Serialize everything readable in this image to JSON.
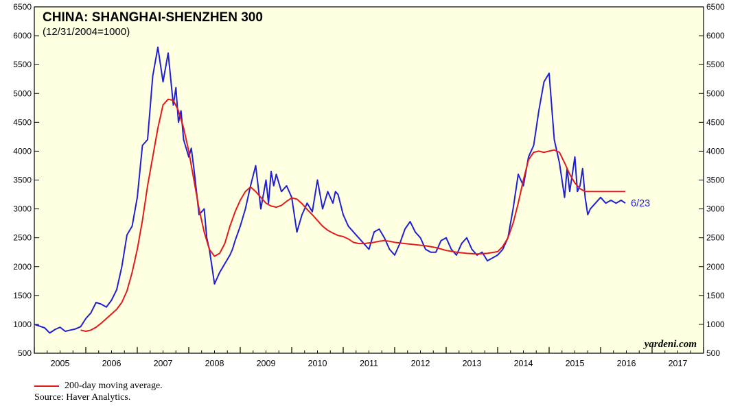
{
  "chart_data": {
    "type": "line",
    "title": "CHINA: SHANGHAI-SHENZHEN 300",
    "subtitle": "(12/31/2004=1000)",
    "ylim": [
      500,
      6500
    ],
    "yticks": [
      500,
      1000,
      1500,
      2000,
      2500,
      3000,
      3500,
      4000,
      4500,
      5000,
      5500,
      6000,
      6500
    ],
    "xlim": [
      2005.0,
      2018.0
    ],
    "xcategories": [
      "2005",
      "2006",
      "2007",
      "2008",
      "2009",
      "2010",
      "2011",
      "2012",
      "2013",
      "2014",
      "2015",
      "2016",
      "2017"
    ],
    "grid": false,
    "end_label": "6/23",
    "brand": "yardeni.com",
    "series": [
      {
        "name": "Shanghai-Shenzhen 300",
        "color": "#1f1fd6",
        "x": [
          2005.0,
          2005.1,
          2005.2,
          2005.3,
          2005.4,
          2005.5,
          2005.6,
          2005.7,
          2005.8,
          2005.9,
          2006.0,
          2006.1,
          2006.2,
          2006.3,
          2006.4,
          2006.5,
          2006.6,
          2006.7,
          2006.8,
          2006.9,
          2007.0,
          2007.1,
          2007.2,
          2007.3,
          2007.4,
          2007.5,
          2007.6,
          2007.7,
          2007.75,
          2007.8,
          2007.85,
          2007.9,
          2008.0,
          2008.05,
          2008.1,
          2008.2,
          2008.3,
          2008.35,
          2008.4,
          2008.45,
          2008.5,
          2008.6,
          2008.7,
          2008.8,
          2008.85,
          2008.9,
          2009.0,
          2009.1,
          2009.2,
          2009.3,
          2009.4,
          2009.5,
          2009.55,
          2009.6,
          2009.65,
          2009.7,
          2009.8,
          2009.9,
          2010.0,
          2010.1,
          2010.2,
          2010.3,
          2010.4,
          2010.5,
          2010.6,
          2010.7,
          2010.8,
          2010.85,
          2010.9,
          2011.0,
          2011.1,
          2011.2,
          2011.3,
          2011.4,
          2011.5,
          2011.6,
          2011.7,
          2011.8,
          2011.9,
          2012.0,
          2012.1,
          2012.2,
          2012.3,
          2012.4,
          2012.5,
          2012.6,
          2012.7,
          2012.8,
          2012.9,
          2013.0,
          2013.1,
          2013.2,
          2013.3,
          2013.4,
          2013.5,
          2013.6,
          2013.7,
          2013.8,
          2013.9,
          2014.0,
          2014.1,
          2014.2,
          2014.3,
          2014.4,
          2014.5,
          2014.6,
          2014.7,
          2014.8,
          2014.9,
          2015.0,
          2015.1,
          2015.2,
          2015.3,
          2015.35,
          2015.4,
          2015.45,
          2015.5,
          2015.55,
          2015.6,
          2015.65,
          2015.7,
          2015.75,
          2015.8,
          2015.9,
          2016.0,
          2016.05,
          2016.1,
          2016.2,
          2016.3,
          2016.4,
          2016.48
        ],
        "y": [
          1000,
          970,
          940,
          850,
          910,
          950,
          880,
          900,
          920,
          960,
          1100,
          1200,
          1380,
          1350,
          1300,
          1420,
          1600,
          2000,
          2550,
          2700,
          3200,
          4100,
          4200,
          5300,
          5800,
          5200,
          5700,
          4800,
          5100,
          4500,
          4700,
          4200,
          3900,
          4050,
          3700,
          2900,
          3000,
          2500,
          2300,
          2000,
          1700,
          1900,
          2050,
          2200,
          2300,
          2450,
          2700,
          3000,
          3400,
          3750,
          3000,
          3500,
          3100,
          3650,
          3400,
          3600,
          3300,
          3400,
          3200,
          2600,
          2900,
          3100,
          2950,
          3500,
          3000,
          3300,
          3100,
          3300,
          3250,
          2900,
          2700,
          2600,
          2500,
          2400,
          2300,
          2600,
          2650,
          2500,
          2300,
          2200,
          2400,
          2650,
          2780,
          2600,
          2500,
          2300,
          2250,
          2250,
          2450,
          2500,
          2300,
          2200,
          2400,
          2500,
          2300,
          2200,
          2250,
          2100,
          2150,
          2200,
          2300,
          2500,
          3000,
          3600,
          3400,
          3900,
          4100,
          4700,
          5200,
          5350,
          4200,
          3800,
          3200,
          3700,
          3300,
          3600,
          3900,
          3300,
          3400,
          3700,
          3200,
          2900,
          3000,
          3100,
          3200,
          3150,
          3100,
          3150,
          3100,
          3150,
          3100
        ]
      },
      {
        "name": "200-day moving average.",
        "color": "#e31a1c",
        "x": [
          2005.9,
          2006.0,
          2006.1,
          2006.2,
          2006.3,
          2006.4,
          2006.5,
          2006.6,
          2006.7,
          2006.8,
          2006.9,
          2007.0,
          2007.1,
          2007.2,
          2007.3,
          2007.4,
          2007.5,
          2007.6,
          2007.7,
          2007.8,
          2007.9,
          2008.0,
          2008.1,
          2008.2,
          2008.3,
          2008.4,
          2008.5,
          2008.6,
          2008.7,
          2008.8,
          2008.9,
          2009.0,
          2009.1,
          2009.2,
          2009.3,
          2009.4,
          2009.5,
          2009.6,
          2009.7,
          2009.8,
          2009.9,
          2010.0,
          2010.1,
          2010.2,
          2010.3,
          2010.4,
          2010.5,
          2010.6,
          2010.7,
          2010.8,
          2010.9,
          2011.0,
          2011.1,
          2011.2,
          2011.3,
          2011.4,
          2011.5,
          2011.6,
          2011.7,
          2011.8,
          2011.9,
          2012.0,
          2012.2,
          2012.4,
          2012.6,
          2012.8,
          2013.0,
          2013.2,
          2013.4,
          2013.6,
          2013.8,
          2014.0,
          2014.1,
          2014.2,
          2014.3,
          2014.4,
          2014.5,
          2014.6,
          2014.7,
          2014.8,
          2014.9,
          2015.0,
          2015.1,
          2015.2,
          2015.3,
          2015.4,
          2015.5,
          2015.6,
          2015.7,
          2015.8,
          2015.9,
          2016.0,
          2016.1,
          2016.2,
          2016.3,
          2016.4,
          2016.48
        ],
        "y": [
          900,
          880,
          900,
          950,
          1020,
          1100,
          1180,
          1260,
          1380,
          1580,
          1900,
          2300,
          2800,
          3400,
          3900,
          4400,
          4800,
          4900,
          4880,
          4700,
          4400,
          4000,
          3500,
          3000,
          2600,
          2300,
          2180,
          2230,
          2400,
          2700,
          2950,
          3150,
          3300,
          3380,
          3300,
          3200,
          3100,
          3050,
          3030,
          3060,
          3130,
          3190,
          3170,
          3090,
          2990,
          2900,
          2800,
          2700,
          2630,
          2580,
          2540,
          2520,
          2480,
          2420,
          2400,
          2400,
          2410,
          2420,
          2440,
          2450,
          2440,
          2420,
          2400,
          2380,
          2360,
          2330,
          2280,
          2250,
          2230,
          2220,
          2230,
          2260,
          2350,
          2500,
          2750,
          3100,
          3500,
          3850,
          3980,
          4000,
          3980,
          4000,
          4020,
          3980,
          3800,
          3600,
          3450,
          3350,
          3300,
          3300,
          3300,
          3300,
          3300,
          3300,
          3300,
          3300,
          3300
        ]
      }
    ]
  },
  "footer": {
    "legend_label": "200-day moving average.",
    "source": "Source: Haver Analytics."
  }
}
